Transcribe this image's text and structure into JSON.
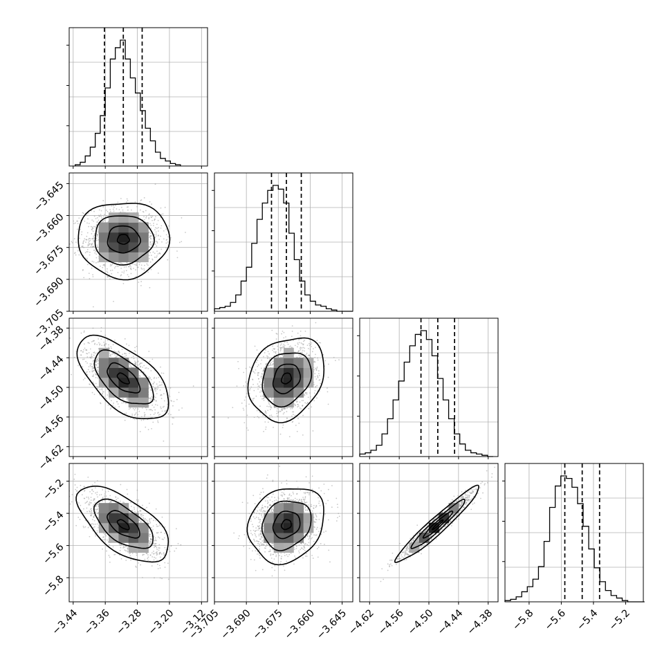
{
  "chart_data": {
    "type": "corner",
    "title": "",
    "parameters": [
      {
        "ticks": [
          "−3.44",
          "−3.36",
          "−3.28",
          "−3.20",
          "−3.12"
        ],
        "tick_values": [
          -3.44,
          -3.36,
          -3.28,
          -3.2,
          -3.12
        ],
        "range": [
          -3.45,
          -3.105
        ],
        "mean": -3.315,
        "std": 0.046,
        "quantiles": [
          -3.362,
          -3.315,
          -3.268
        ],
        "hist": {
          "x_start": -3.435,
          "bin_width": 0.0125,
          "counts": [
            0.01,
            0.03,
            0.08,
            0.15,
            0.26,
            0.4,
            0.62,
            0.85,
            0.94,
            1.0,
            0.85,
            0.7,
            0.58,
            0.44,
            0.3,
            0.2,
            0.11,
            0.06,
            0.04,
            0.02,
            0.01
          ]
        }
      },
      {
        "ticks": [
          "−3.705",
          "−3.690",
          "−3.675",
          "−3.660",
          "−3.645"
        ],
        "tick_values": [
          -3.705,
          -3.69,
          -3.675,
          -3.66,
          -3.645
        ],
        "range": [
          -3.705,
          -3.64
        ],
        "mean": -3.6712,
        "std": 0.0072,
        "quantiles": [
          -3.6782,
          -3.6712,
          -3.6642
        ],
        "hist": {
          "x_start": -3.705,
          "bin_width": 0.0025,
          "counts": [
            0.02,
            0.03,
            0.04,
            0.07,
            0.13,
            0.24,
            0.35,
            0.54,
            0.73,
            0.86,
            0.96,
            1.0,
            0.97,
            0.86,
            0.62,
            0.41,
            0.24,
            0.13,
            0.08,
            0.05,
            0.04,
            0.02,
            0.01,
            0.0,
            0.0,
            0.0
          ]
        }
      },
      {
        "ticks": [
          "−4.62",
          "−4.56",
          "−4.50",
          "−4.44",
          "−4.38"
        ],
        "tick_values": [
          -4.62,
          -4.56,
          -4.5,
          -4.44,
          -4.38
        ],
        "range": [
          -4.64,
          -4.36
        ],
        "mean": -4.482,
        "std": 0.034,
        "quantiles": [
          -4.516,
          -4.482,
          -4.448
        ],
        "hist": {
          "x_start": -4.64,
          "bin_width": 0.01125,
          "counts": [
            0.02,
            0.03,
            0.05,
            0.09,
            0.18,
            0.3,
            0.45,
            0.6,
            0.75,
            0.88,
            0.97,
            1.0,
            0.93,
            0.8,
            0.62,
            0.45,
            0.3,
            0.18,
            0.1,
            0.05,
            0.03,
            0.02,
            0.01,
            0.0
          ]
        }
      },
      {
        "ticks": [
          "−5.8",
          "−5.6",
          "−5.4",
          "−5.2"
        ],
        "tick_values": [
          -5.8,
          -5.6,
          -5.4,
          -5.2
        ],
        "range": [
          -5.95,
          -5.09
        ],
        "mean": -5.47,
        "std": 0.095,
        "quantiles": [
          -5.578,
          -5.47,
          -5.362
        ],
        "hist": {
          "x_start": -5.95,
          "bin_width": 0.0347,
          "counts": [
            0.01,
            0.02,
            0.04,
            0.08,
            0.12,
            0.18,
            0.28,
            0.48,
            0.75,
            0.92,
            1.0,
            0.98,
            0.91,
            0.78,
            0.6,
            0.42,
            0.27,
            0.16,
            0.09,
            0.05,
            0.03,
            0.01,
            0.0,
            0.0,
            0.0
          ]
        }
      }
    ],
    "correlations": [
      {
        "row": 1,
        "col": 0,
        "rho": 0.0
      },
      {
        "row": 2,
        "col": 0,
        "rho": -0.6
      },
      {
        "row": 2,
        "col": 1,
        "rho": 0.22
      },
      {
        "row": 3,
        "col": 0,
        "rho": -0.62
      },
      {
        "row": 3,
        "col": 1,
        "rho": 0.18
      },
      {
        "row": 3,
        "col": 2,
        "rho": 0.96
      }
    ],
    "grid": true,
    "colors": {
      "line": "#000000",
      "scatter": "#9a9a9a",
      "grid": "#b0b0b0"
    }
  }
}
